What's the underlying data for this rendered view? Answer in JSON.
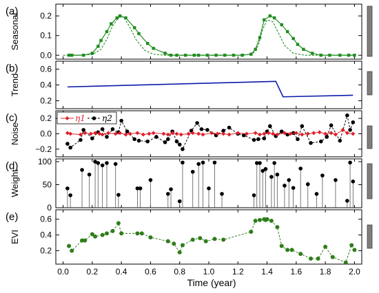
{
  "xaxis": {
    "label": "Time (year)",
    "ticks": [
      0.0,
      0.2,
      0.4,
      0.6,
      0.8,
      1.0,
      1.2,
      1.4,
      1.6,
      1.8,
      2.0
    ],
    "tick_labels": [
      "0.0",
      "0.2",
      "0.4",
      "0.6",
      "0.8",
      "1.0",
      "1.2",
      "1.4",
      "1.6",
      "1.8",
      "2.0"
    ],
    "xlim": [
      -0.05,
      2.05
    ]
  },
  "colors": {
    "seasonal": "#1e8c1e",
    "trend": "#0a1aa8",
    "eta1": "#e0202a",
    "eta2": "#000000",
    "weight": "#000000",
    "evi": "#2e7d1a",
    "scale_bar": "#7f7f7f"
  },
  "chart_data": [
    {
      "type": "line",
      "panel": "(a)",
      "ylabel": "Seasonal",
      "ylim": [
        -0.02,
        0.26
      ],
      "yticks": [
        0.0,
        0.1,
        0.2
      ],
      "ytick_labels": [
        "0.0",
        "0.1",
        "0.2"
      ],
      "series": [
        {
          "style": "solid-with-squares",
          "x": [
            0.04,
            0.06,
            0.14,
            0.2,
            0.24,
            0.26,
            0.3,
            0.33,
            0.37,
            0.39,
            0.43,
            0.49,
            0.52,
            0.58,
            0.62,
            0.7,
            0.74,
            0.78,
            0.84,
            0.9,
            0.93,
            0.99,
            1.05,
            1.11,
            1.17,
            1.23,
            1.29,
            1.32,
            1.35,
            1.38,
            1.42,
            1.45,
            1.5,
            1.54,
            1.58,
            1.61,
            1.65,
            1.71,
            1.77,
            1.83,
            1.9,
            1.96,
            2.0
          ],
          "y": [
            0.0,
            0.0,
            0.0,
            0.01,
            0.045,
            0.075,
            0.12,
            0.16,
            0.19,
            0.2,
            0.19,
            0.14,
            0.11,
            0.06,
            0.035,
            0.01,
            0.0,
            0.0,
            0.0,
            0.0,
            0.0,
            0.0,
            0.0,
            0.0,
            0.0,
            0.0,
            0.005,
            0.03,
            0.09,
            0.18,
            0.2,
            0.19,
            0.155,
            0.12,
            0.085,
            0.055,
            0.03,
            0.01,
            0.0,
            0.0,
            0.0,
            0.0,
            0.0
          ]
        },
        {
          "style": "dashed",
          "x": [
            0.0,
            0.1,
            0.2,
            0.26,
            0.3,
            0.34,
            0.38,
            0.4,
            0.42,
            0.46,
            0.5,
            0.56,
            0.62,
            0.7,
            1.0,
            1.2,
            1.3,
            1.34,
            1.37,
            1.4,
            1.44,
            1.48,
            1.52,
            1.58,
            1.66,
            2.0
          ],
          "y": [
            0.0,
            0.0,
            0.003,
            0.03,
            0.08,
            0.15,
            0.19,
            0.2,
            0.19,
            0.14,
            0.08,
            0.025,
            0.005,
            0.0,
            0.0,
            0.0,
            0.005,
            0.05,
            0.13,
            0.18,
            0.17,
            0.11,
            0.05,
            0.01,
            0.0,
            0.0
          ]
        }
      ]
    },
    {
      "type": "line",
      "panel": "(b)",
      "ylabel": "Trend",
      "ylim": [
        0.1,
        0.7
      ],
      "yticks": [
        0.2,
        0.4,
        0.6
      ],
      "ytick_labels": [
        "0.2",
        "0.4",
        "0.6"
      ],
      "series": [
        {
          "x": [
            0.03,
            1.46,
            1.51,
            1.99
          ],
          "y": [
            0.375,
            0.445,
            0.25,
            0.27
          ]
        }
      ]
    },
    {
      "type": "line",
      "panel": "(c)",
      "ylabel": "Noise",
      "ylim": [
        -0.3,
        0.3
      ],
      "yticks": [
        -0.2,
        0.0,
        0.2
      ],
      "ytick_labels": [
        "−0.2",
        "0.0",
        "0.2"
      ],
      "legend": {
        "placement": "top-left",
        "entries": [
          "η1",
          "η2"
        ]
      },
      "series": [
        {
          "name": "η1",
          "x": [
            0.03,
            0.05,
            0.12,
            0.15,
            0.19,
            0.22,
            0.25,
            0.27,
            0.31,
            0.36,
            0.39,
            0.43,
            0.46,
            0.51,
            0.55,
            0.59,
            0.62,
            0.69,
            0.72,
            0.75,
            0.78,
            0.81,
            0.86,
            0.89,
            0.93,
            0.96,
            1.02,
            1.06,
            1.1,
            1.14,
            1.2,
            1.26,
            1.32,
            1.35,
            1.38,
            1.41,
            1.44,
            1.47,
            1.52,
            1.56,
            1.6,
            1.64,
            1.68,
            1.72,
            1.76,
            1.8,
            1.84,
            1.87,
            1.92,
            1.95,
            1.99
          ],
          "y": [
            0.01,
            0.0,
            -0.01,
            0.01,
            0.0,
            0.01,
            0.0,
            -0.01,
            0.01,
            0.0,
            0.01,
            -0.01,
            0.0,
            0.01,
            -0.01,
            0.0,
            0.01,
            0.0,
            -0.01,
            0.01,
            0.0,
            -0.01,
            0.0,
            0.01,
            0.0,
            -0.01,
            0.01,
            0.0,
            0.0,
            -0.01,
            0.01,
            0.0,
            0.01,
            -0.01,
            0.0,
            0.01,
            0.0,
            -0.01,
            0.01,
            0.0,
            0.01,
            -0.01,
            0.0,
            0.01,
            0.02,
            0.0,
            0.01,
            -0.01,
            0.05,
            0.01,
            0.0
          ]
        },
        {
          "name": "η2",
          "x": [
            0.03,
            0.05,
            0.12,
            0.14,
            0.2,
            0.24,
            0.27,
            0.3,
            0.34,
            0.38,
            0.4,
            0.44,
            0.49,
            0.52,
            0.58,
            0.64,
            0.7,
            0.72,
            0.75,
            0.78,
            0.8,
            0.82,
            0.88,
            0.92,
            0.95,
            0.99,
            1.05,
            1.1,
            1.14,
            1.2,
            1.24,
            1.31,
            1.34,
            1.38,
            1.4,
            1.42,
            1.46,
            1.5,
            1.54,
            1.58,
            1.61,
            1.64,
            1.7,
            1.77,
            1.81,
            1.84,
            1.9,
            1.95,
            1.97,
            1.99
          ],
          "y": [
            -0.13,
            -0.18,
            -0.08,
            0.05,
            -0.06,
            0.02,
            0.06,
            -0.04,
            0.06,
            0.02,
            0.17,
            0.03,
            -0.07,
            -0.09,
            -0.1,
            -0.04,
            -0.11,
            -0.07,
            0.03,
            -0.1,
            -0.14,
            -0.2,
            0.04,
            0.14,
            0.06,
            0.05,
            -0.02,
            0.04,
            0.08,
            0.0,
            -0.02,
            -0.08,
            -0.07,
            -0.06,
            0.03,
            0.1,
            -0.03,
            0.03,
            -0.01,
            0.01,
            -0.07,
            0.1,
            -0.12,
            -0.1,
            -0.04,
            0.11,
            -0.09,
            0.24,
            0.05,
            0.15
          ]
        }
      ]
    },
    {
      "type": "stem",
      "panel": "(d)",
      "ylabel": "Weight",
      "ylim": [
        0,
        106
      ],
      "yticks": [
        0,
        50,
        100
      ],
      "ytick_labels": [
        "0",
        "50",
        "100"
      ],
      "series": [
        {
          "x": [
            0.03,
            0.05,
            0.13,
            0.18,
            0.22,
            0.24,
            0.27,
            0.3,
            0.36,
            0.38,
            0.51,
            0.53,
            0.6,
            0.72,
            0.74,
            0.8,
            0.82,
            0.89,
            0.93,
            0.96,
            1.0,
            1.04,
            1.09,
            1.31,
            1.33,
            1.35,
            1.37,
            1.39,
            1.43,
            1.45,
            1.47,
            1.52,
            1.55,
            1.58,
            1.63,
            1.68,
            1.74,
            1.78,
            1.87,
            1.95,
            1.97,
            1.99
          ],
          "y": [
            42,
            27,
            82,
            72,
            100,
            97,
            92,
            97,
            95,
            28,
            42,
            42,
            60,
            30,
            40,
            14,
            98,
            78,
            95,
            98,
            42,
            98,
            30,
            27,
            97,
            97,
            80,
            84,
            67,
            97,
            72,
            48,
            60,
            43,
            85,
            51,
            30,
            70,
            60,
            15,
            98,
            57
          ]
        }
      ]
    },
    {
      "type": "line",
      "panel": "(e)",
      "ylabel": "EVI",
      "ylim": [
        0.03,
        0.72
      ],
      "yticks": [
        0.2,
        0.4,
        0.6
      ],
      "ytick_labels": [
        "0.2",
        "0.4",
        "0.6"
      ],
      "series": [
        {
          "x": [
            0.04,
            0.06,
            0.13,
            0.15,
            0.2,
            0.22,
            0.27,
            0.3,
            0.34,
            0.38,
            0.4,
            0.51,
            0.54,
            0.6,
            0.72,
            0.76,
            0.8,
            0.82,
            0.89,
            0.94,
            0.98,
            1.04,
            1.1,
            1.29,
            1.32,
            1.35,
            1.38,
            1.39,
            1.4,
            1.43,
            1.47,
            1.5,
            1.54,
            1.57,
            1.63,
            1.7,
            1.75,
            1.8,
            1.85,
            1.94,
            1.98,
            2.0
          ],
          "y": [
            0.26,
            0.2,
            0.33,
            0.33,
            0.41,
            0.38,
            0.4,
            0.42,
            0.45,
            0.55,
            0.42,
            0.42,
            0.42,
            0.37,
            0.32,
            0.29,
            0.18,
            0.27,
            0.34,
            0.36,
            0.32,
            0.35,
            0.34,
            0.44,
            0.58,
            0.59,
            0.6,
            0.59,
            0.6,
            0.58,
            0.5,
            0.26,
            0.21,
            0.21,
            0.16,
            0.1,
            0.1,
            0.25,
            0.12,
            0.05,
            0.27,
            0.21
          ]
        }
      ]
    }
  ]
}
